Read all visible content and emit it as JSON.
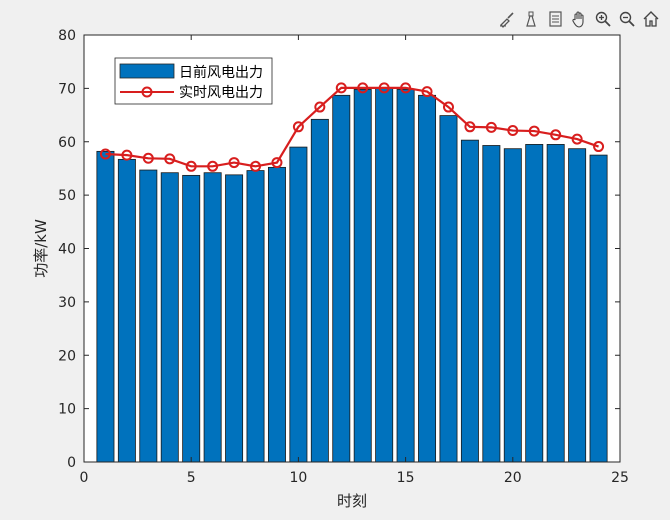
{
  "toolbar": {
    "icons": [
      "brush-icon",
      "data-cursor-icon",
      "legend-toggle-icon",
      "pan-icon",
      "zoom-in-icon",
      "zoom-out-icon",
      "home-icon"
    ]
  },
  "colors": {
    "background": "#f0f0f0",
    "axes_bg": "#ffffff",
    "bar": "#0072BD",
    "line": "#D81E1E"
  },
  "chart_data": {
    "type": "bar",
    "xlabel": "时刻",
    "ylabel": "功率/kW",
    "xlim": [
      0,
      25
    ],
    "ylim": [
      0,
      80
    ],
    "xticks": [
      0,
      5,
      10,
      15,
      20,
      25
    ],
    "yticks": [
      0,
      10,
      20,
      30,
      40,
      50,
      60,
      70,
      80
    ],
    "grid": false,
    "legend_location": "top-left",
    "x": [
      1,
      2,
      3,
      4,
      5,
      6,
      7,
      8,
      9,
      10,
      11,
      12,
      13,
      14,
      15,
      16,
      17,
      18,
      19,
      20,
      21,
      22,
      23,
      24
    ],
    "series": [
      {
        "name": "日前风电出力",
        "type": "bar",
        "values": [
          58.2,
          56.7,
          54.7,
          54.2,
          53.7,
          54.2,
          53.8,
          54.6,
          55.2,
          59.0,
          64.2,
          68.7,
          69.8,
          70.0,
          69.8,
          68.7,
          64.9,
          60.3,
          59.3,
          58.7,
          59.5,
          59.5,
          58.7,
          57.5
        ]
      },
      {
        "name": "实时风电出力",
        "type": "line",
        "values": [
          57.7,
          57.5,
          56.9,
          56.8,
          55.4,
          55.4,
          56.1,
          55.4,
          56.1,
          62.8,
          66.5,
          70.1,
          70.1,
          70.1,
          70.1,
          69.4,
          66.5,
          62.8,
          62.7,
          62.1,
          62.0,
          61.3,
          60.5,
          59.1
        ]
      }
    ]
  }
}
